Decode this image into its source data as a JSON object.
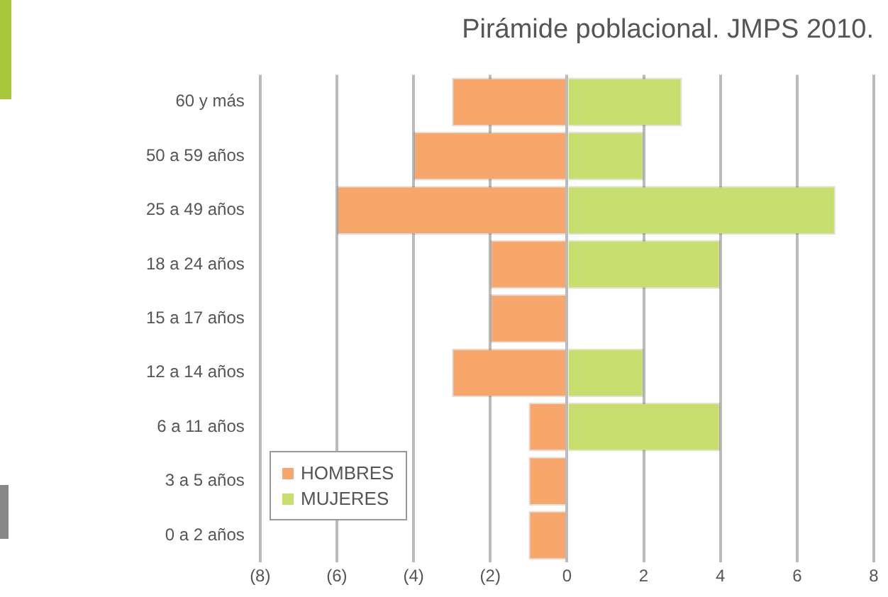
{
  "chart_data": {
    "type": "bar",
    "orientation": "horizontal",
    "stacked": true,
    "title": "Pirámide poblacional. JMPS 2010.",
    "categories": [
      "60 y más",
      "50 a 59 años",
      "25 a 49 años",
      "18 a 24 años",
      "15 a 17 años",
      "12 a 14 años",
      "6 a 11 años",
      "3 a 5 años",
      "0 a 2 años"
    ],
    "series": [
      {
        "name": "HOMBRES",
        "color": "#f7a66c",
        "values": [
          -3,
          -4,
          -6,
          -2,
          -2,
          -3,
          -1,
          -1,
          -1
        ]
      },
      {
        "name": "MUJERES",
        "color": "#c8de6e",
        "values": [
          3,
          2,
          7,
          4,
          0,
          2,
          4,
          0,
          0
        ]
      }
    ],
    "xlim": [
      -8,
      8
    ],
    "xticks": [
      {
        "value": -8,
        "label": "(8)"
      },
      {
        "value": -6,
        "label": "(6)"
      },
      {
        "value": -4,
        "label": "(4)"
      },
      {
        "value": -2,
        "label": "(2)"
      },
      0,
      2,
      4,
      6,
      8
    ],
    "grid": "x",
    "legend": "bottom left"
  }
}
